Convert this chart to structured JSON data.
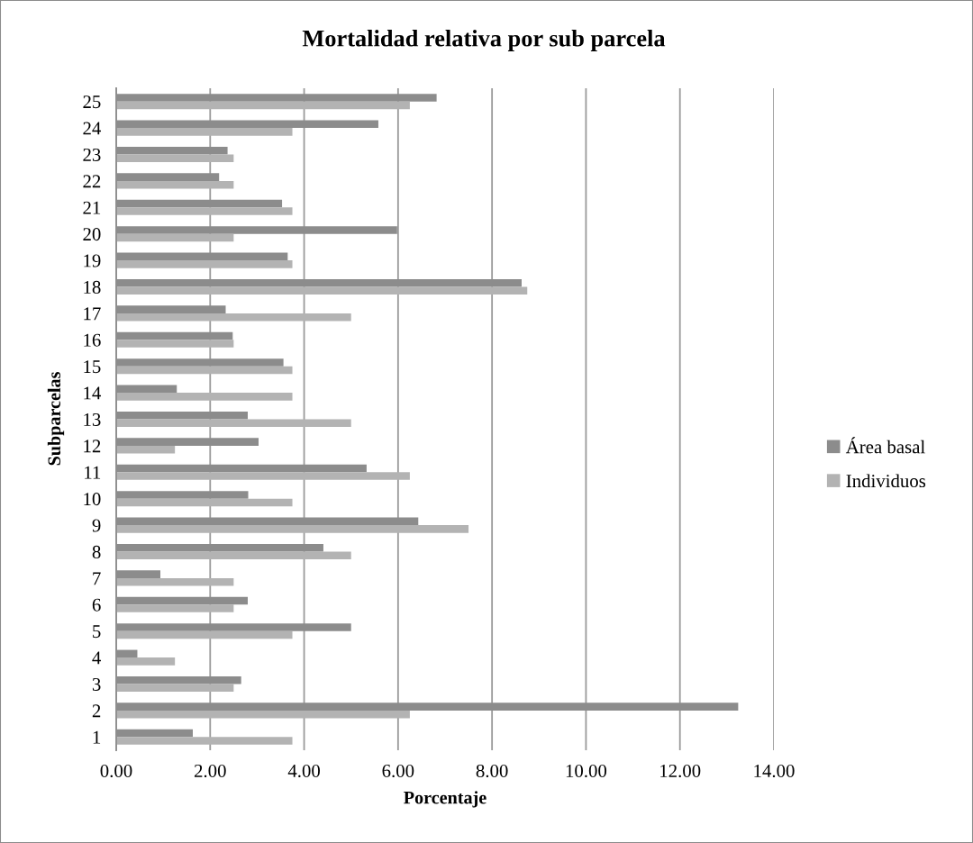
{
  "chart_data": {
    "type": "bar",
    "orientation": "horizontal",
    "title": "Mortalidad relativa por sub parcela",
    "xlabel": "Porcentaje",
    "ylabel": "Subparcelas",
    "categories": [
      "25",
      "24",
      "23",
      "22",
      "21",
      "20",
      "19",
      "18",
      "17",
      "16",
      "15",
      "14",
      "13",
      "12",
      "11",
      "10",
      "9",
      "8",
      "7",
      "6",
      "5",
      "4",
      "3",
      "2",
      "1"
    ],
    "series": [
      {
        "name": "Área basal",
        "color": "#8c8c8c",
        "values": [
          6.82,
          5.58,
          2.37,
          2.19,
          3.53,
          5.98,
          3.65,
          8.63,
          2.33,
          2.48,
          3.56,
          1.29,
          2.8,
          3.03,
          5.33,
          2.81,
          6.43,
          4.41,
          0.94,
          2.8,
          5.0,
          0.45,
          2.66,
          13.24,
          1.63
        ]
      },
      {
        "name": "Individuos",
        "color": "#b3b3b3",
        "values": [
          6.25,
          3.75,
          2.5,
          2.5,
          3.75,
          2.5,
          3.75,
          8.75,
          5.0,
          2.5,
          3.75,
          3.75,
          5.0,
          1.25,
          6.25,
          3.75,
          7.5,
          5.0,
          2.5,
          2.5,
          3.75,
          1.25,
          2.5,
          6.25,
          3.75
        ]
      }
    ],
    "xlim": [
      0,
      14
    ],
    "xticks": [
      {
        "value": 0,
        "label": "0.00"
      },
      {
        "value": 2,
        "label": "2.00"
      },
      {
        "value": 4,
        "label": "4.00"
      },
      {
        "value": 6,
        "label": "6.00"
      },
      {
        "value": 8,
        "label": "8.00"
      },
      {
        "value": 10,
        "label": "10.00"
      },
      {
        "value": 12,
        "label": "12.00"
      },
      {
        "value": 14,
        "label": "14.00"
      }
    ],
    "grid": "x",
    "legend": "right"
  }
}
